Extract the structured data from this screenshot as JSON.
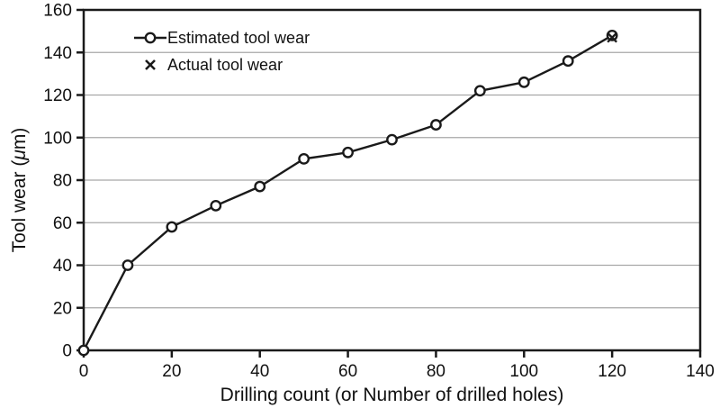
{
  "colors": {
    "line": "#1a1a1a",
    "marker_fill": "#ffffff",
    "grid": "#a8a8a8",
    "axis": "#1a1a1a",
    "background": "#ffffff"
  },
  "chart_data": {
    "type": "line",
    "title": "",
    "xlabel": "Drilling count (or Number of drilled holes)",
    "ylabel": "Tool wear (μm)",
    "ylabel_parts": [
      "Tool wear (",
      "μ",
      "m)"
    ],
    "xlim": [
      0,
      140
    ],
    "ylim": [
      0,
      160
    ],
    "x_ticks": [
      0,
      20,
      40,
      60,
      80,
      100,
      120,
      140
    ],
    "y_ticks": [
      0,
      20,
      40,
      60,
      80,
      100,
      120,
      140,
      160
    ],
    "grid": "horizontal",
    "legend_position": "inside-top-left",
    "series": [
      {
        "name": "Estimated tool wear",
        "marker": "circle",
        "line": true,
        "x": [
          0,
          10,
          20,
          30,
          40,
          50,
          60,
          70,
          80,
          90,
          100,
          110,
          120
        ],
        "y": [
          0,
          40,
          58,
          68,
          77,
          90,
          93,
          99,
          106,
          122,
          126,
          136,
          148
        ]
      },
      {
        "name": "Actual tool wear",
        "marker": "x",
        "line": false,
        "x": [
          120
        ],
        "y": [
          147
        ]
      }
    ]
  }
}
